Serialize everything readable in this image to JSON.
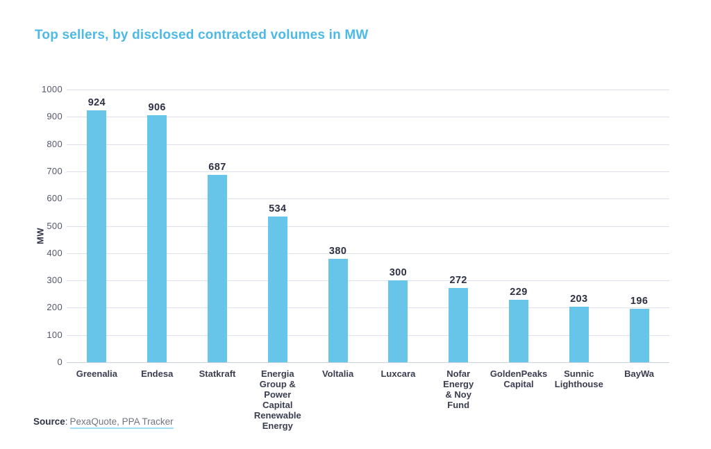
{
  "title": "Top sellers, by disclosed contracted volumes in MW",
  "source": {
    "label": "Source",
    "separator": ":",
    "link": "PexaQuote, PPA Tracker"
  },
  "colors": {
    "title": "#4db9e7",
    "bar": "#66c5e8",
    "gridline": "#dce1e9",
    "baseline": "#ccd2db",
    "dark_text": "#33364a",
    "value_text": "#2e3143",
    "tick_text": "#54576a",
    "link_text": "#70747f",
    "link_underline": "#9fe0f6"
  },
  "chart_data": {
    "type": "bar",
    "title": "Top sellers, by disclosed contracted volumes in MW",
    "categories": [
      "Greenalia",
      "Endesa",
      "Statkraft",
      "Energia\nGroup &\nPower\nCapital\nRenewable\nEnergy",
      "Voltalia",
      "Luxcara",
      "Nofar\nEnergy\n& Noy\nFund",
      "GoldenPeaks\nCapital",
      "Sunnic\nLighthouse",
      "BayWa"
    ],
    "values": [
      924,
      906,
      687,
      534,
      380,
      300,
      272,
      229,
      203,
      196
    ],
    "xlabel": "",
    "ylabel": "MW",
    "ylim": [
      0,
      1000
    ],
    "ytick_step": 100,
    "grid": true,
    "legend": false,
    "value_labels": true,
    "bar_color": "#66c5e8"
  }
}
